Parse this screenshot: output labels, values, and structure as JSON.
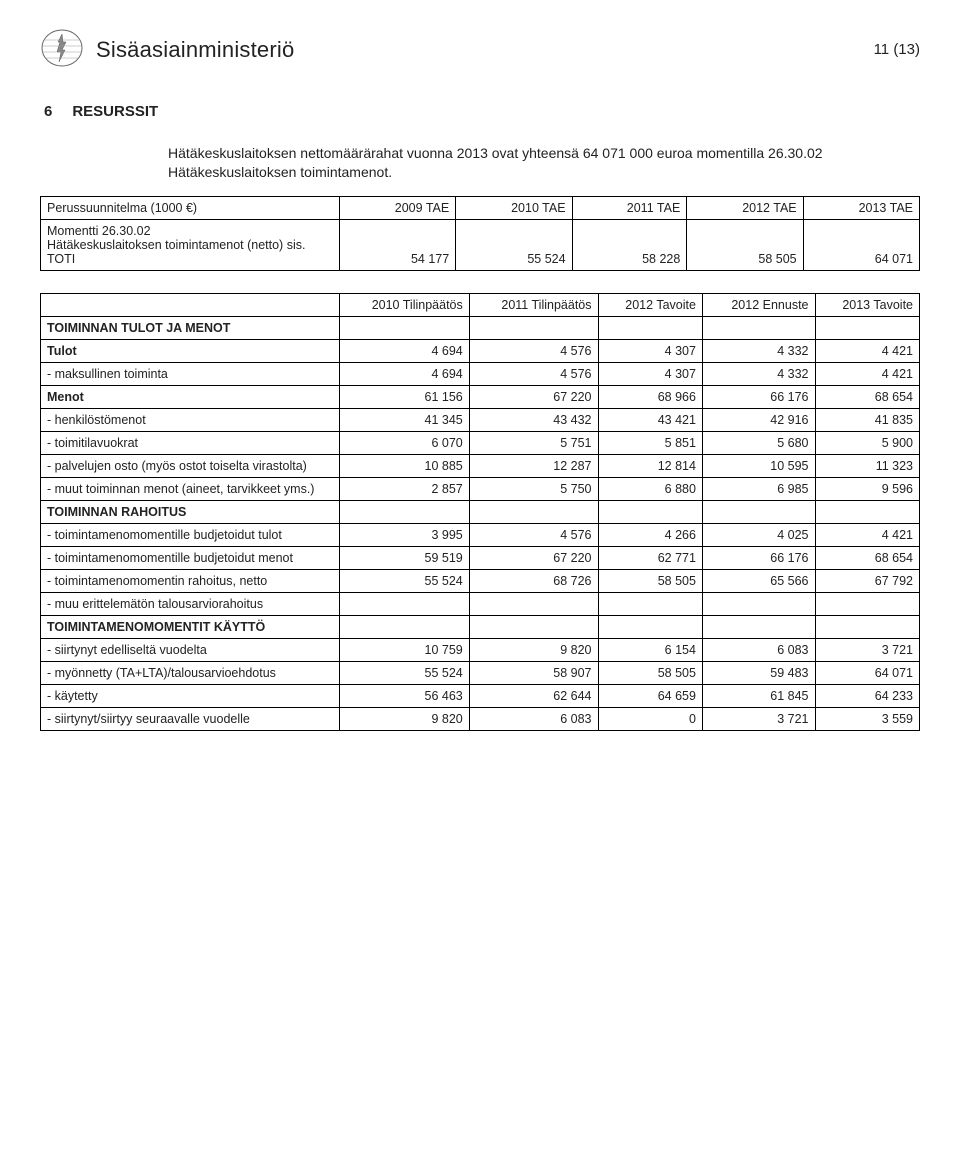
{
  "header": {
    "org": "Sisäasiainministeriö",
    "page": "11 (13)"
  },
  "section": {
    "num": "6",
    "title": "RESURSSIT",
    "intro": "Hätäkeskuslaitoksen nettomäärärahat vuonna 2013 ovat yhteensä 64 071 000 euroa momentilla 26.30.02 Hätäkeskuslaitoksen toimintamenot."
  },
  "table1": {
    "row_header_label": "Perussuunnitelma (1000 €)",
    "cols": [
      "2009 TAE",
      "2010 TAE",
      "2011 TAE",
      "2012 TAE",
      "2013 TAE"
    ],
    "momentti_label": "Momentti 26.30.02",
    "momentti_sub": "Hätäkeskuslaitoksen toimintamenot (netto) sis. TOTI",
    "values": [
      "54 177",
      "55 524",
      "58 228",
      "58 505",
      "64 071"
    ]
  },
  "table2": {
    "cols": [
      "2010 Tilinpäätös",
      "2011 Tilinpäätös",
      "2012 Tavoite",
      "2012 Ennuste",
      "2013 Tavoite"
    ],
    "groups": [
      {
        "title": "TOIMINNAN TULOT JA MENOT",
        "rows": [
          {
            "label": "Tulot",
            "bold": true,
            "v": [
              "4 694",
              "4 576",
              "4 307",
              "4 332",
              "4 421"
            ]
          },
          {
            "label": "- maksullinen toiminta",
            "v": [
              "4 694",
              "4 576",
              "4 307",
              "4 332",
              "4 421"
            ]
          },
          {
            "label": "Menot",
            "bold": true,
            "v": [
              "61 156",
              "67 220",
              "68 966",
              "66 176",
              "68 654"
            ]
          },
          {
            "label": "- henkilöstömenot",
            "v": [
              "41 345",
              "43 432",
              "43 421",
              "42 916",
              "41 835"
            ]
          },
          {
            "label": "- toimitilavuokrat",
            "v": [
              "6 070",
              "5 751",
              "5 851",
              "5 680",
              "5 900"
            ]
          },
          {
            "label": "- palvelujen osto (myös ostot toiselta virastolta)",
            "v": [
              "10 885",
              "12 287",
              "12 814",
              "10 595",
              "11 323"
            ]
          },
          {
            "label": "- muut toiminnan menot (aineet, tarvikkeet yms.)",
            "v": [
              "2 857",
              "5 750",
              "6 880",
              "6 985",
              "9 596"
            ]
          }
        ]
      },
      {
        "title": "TOIMINNAN RAHOITUS",
        "rows": [
          {
            "label": "- toimintamenomomentille budjetoidut tulot",
            "v": [
              "3 995",
              "4 576",
              "4 266",
              "4 025",
              "4 421"
            ]
          },
          {
            "label": "- toimintamenomomentille budjetoidut menot",
            "v": [
              "59 519",
              "67 220",
              "62 771",
              "66 176",
              "68 654"
            ]
          },
          {
            "label": "- toimintamenomomentin rahoitus, netto",
            "v": [
              "55 524",
              "68 726",
              "58 505",
              "65 566",
              "67 792"
            ]
          },
          {
            "label": "- muu erittelemätön talousarviorahoitus",
            "v": [
              "",
              "",
              "",
              "",
              ""
            ]
          }
        ]
      },
      {
        "title": "TOIMINTAMENOMOMENTIT KÄYTTÖ",
        "rows": [
          {
            "label": "- siirtynyt edelliseltä vuodelta",
            "v": [
              "10 759",
              "9 820",
              "6 154",
              "6 083",
              "3 721"
            ]
          },
          {
            "label": "- myönnetty (TA+LTA)/talousarvioehdotus",
            "v": [
              "55 524",
              "58 907",
              "58 505",
              "59 483",
              "64 071"
            ]
          },
          {
            "label": "- käytetty",
            "v": [
              "56 463",
              "62 644",
              "64 659",
              "61 845",
              "64 233"
            ]
          },
          {
            "label": "- siirtynyt/siirtyy seuraavalle vuodelle",
            "v": [
              "9 820",
              "6 083",
              "0",
              "3 721",
              "3 559"
            ]
          }
        ]
      }
    ]
  }
}
